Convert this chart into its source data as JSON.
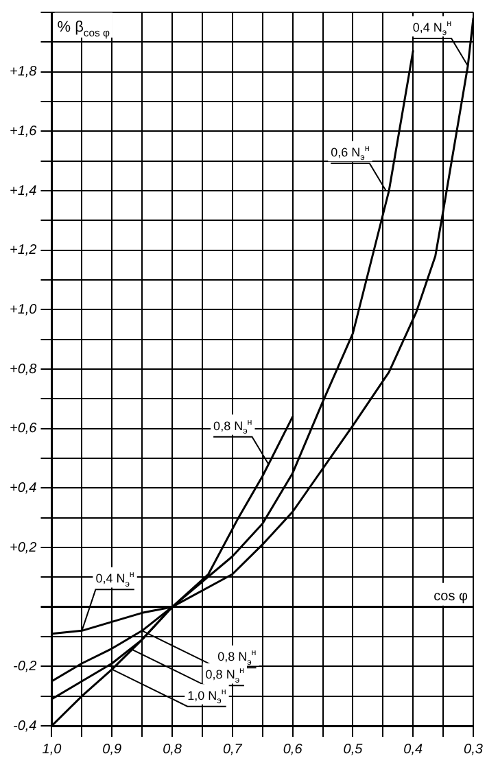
{
  "chart_data": {
    "type": "line",
    "xlabel": "cos φ",
    "ylabel": "% β$_{cos φ}$",
    "xlim": [
      1.0,
      0.3
    ],
    "ylim": [
      -0.4,
      2.0
    ],
    "xticks": [
      {
        "value": 1.0,
        "label": "1,0"
      },
      {
        "value": 0.95,
        "label": null
      },
      {
        "value": 0.9,
        "label": "0,9"
      },
      {
        "value": 0.85,
        "label": null
      },
      {
        "value": 0.8,
        "label": "0,8"
      },
      {
        "value": 0.75,
        "label": null
      },
      {
        "value": 0.7,
        "label": "0,7"
      },
      {
        "value": 0.65,
        "label": null
      },
      {
        "value": 0.6,
        "label": "0,6"
      },
      {
        "value": 0.55,
        "label": null
      },
      {
        "value": 0.5,
        "label": "0,5"
      },
      {
        "value": 0.45,
        "label": null
      },
      {
        "value": 0.4,
        "label": "0,4"
      },
      {
        "value": 0.35,
        "label": null
      },
      {
        "value": 0.3,
        "label": "0,3"
      }
    ],
    "yticks": [
      {
        "value": -0.4,
        "label": "-0,4"
      },
      {
        "value": -0.3,
        "label": null
      },
      {
        "value": -0.2,
        "label": "-0,2"
      },
      {
        "value": -0.1,
        "label": null
      },
      {
        "value": 0,
        "label": null
      },
      {
        "value": 0.1,
        "label": null
      },
      {
        "value": 0.2,
        "label": "+0,2"
      },
      {
        "value": 0.3,
        "label": null
      },
      {
        "value": 0.4,
        "label": "+0,4"
      },
      {
        "value": 0.5,
        "label": null
      },
      {
        "value": 0.6,
        "label": "+0,6"
      },
      {
        "value": 0.7,
        "label": null
      },
      {
        "value": 0.8,
        "label": "+0,8"
      },
      {
        "value": 0.9,
        "label": null
      },
      {
        "value": 1.0,
        "label": "+1,0"
      },
      {
        "value": 1.1,
        "label": null
      },
      {
        "value": 1.2,
        "label": "+1,2"
      },
      {
        "value": 1.3,
        "label": null
      },
      {
        "value": 1.4,
        "label": "+1,4"
      },
      {
        "value": 1.5,
        "label": null
      },
      {
        "value": 1.6,
        "label": "+1,6"
      },
      {
        "value": 1.7,
        "label": null
      },
      {
        "value": 1.8,
        "label": "+1,8"
      },
      {
        "value": 1.9,
        "label": null
      },
      {
        "value": 2.0,
        "label": null
      }
    ],
    "grid": true,
    "legend": false,
    "marker": "none",
    "line_style": "solid",
    "series": [
      {
        "color": "#000000",
        "x": [
          1.0,
          0.95,
          0.9,
          0.85,
          0.8,
          0.7,
          0.65,
          0.6,
          0.5,
          0.44,
          0.395,
          0.363,
          0.351,
          0.309,
          0.3
        ],
        "values": [
          -0.09,
          -0.08,
          -0.05,
          -0.02,
          0,
          0.11,
          0.21,
          0.32,
          0.61,
          0.79,
          0.99,
          1.18,
          1.32,
          1.82,
          1.98
        ]
      },
      {
        "color": "#000000",
        "x": [
          1.0,
          0.95,
          0.9,
          0.85,
          0.8,
          0.7,
          0.65,
          0.6,
          0.55,
          0.5,
          0.47,
          0.44,
          0.4
        ],
        "values": [
          -0.25,
          -0.19,
          -0.14,
          -0.08,
          0,
          0.17,
          0.28,
          0.45,
          0.69,
          0.92,
          1.16,
          1.4,
          1.87
        ]
      },
      {
        "color": "#000000",
        "x": [
          1.0,
          0.95,
          0.9,
          0.85,
          0.8,
          0.74,
          0.69,
          0.65,
          0.6
        ],
        "values": [
          -0.31,
          -0.25,
          -0.19,
          -0.11,
          0,
          0.11,
          0.3,
          0.44,
          0.64
        ]
      },
      {
        "color": "#000000",
        "x": [
          1.0,
          0.95,
          0.9,
          0.85,
          0.8
        ],
        "values": [
          -0.4,
          -0.3,
          -0.21,
          -0.11,
          0
        ]
      }
    ],
    "annotations": [
      {
        "text": "0,4 N$_{э}$$^{н}$",
        "x": 0.309,
        "y": 1.82
      },
      {
        "text": "0,6 N$_{э}$$^{н}$",
        "x": 0.445,
        "y": 1.4
      },
      {
        "text": "0,8 N$_{э}$$^{н}$",
        "x": 0.64,
        "y": 0.48
      },
      {
        "text": "0,4 N$_{э}$$^{н}$",
        "x": 0.95,
        "y": -0.08
      },
      {
        "text": "0,8 N$_{э}$$^{н}$",
        "x": 0.85,
        "y": -0.08
      },
      {
        "text": "0,8 N$_{э}$$^{н}$",
        "x": 0.87,
        "y": -0.14
      },
      {
        "text": "1,0 N$_{э}$$^{н}$",
        "x": 0.9,
        "y": -0.21
      }
    ]
  }
}
